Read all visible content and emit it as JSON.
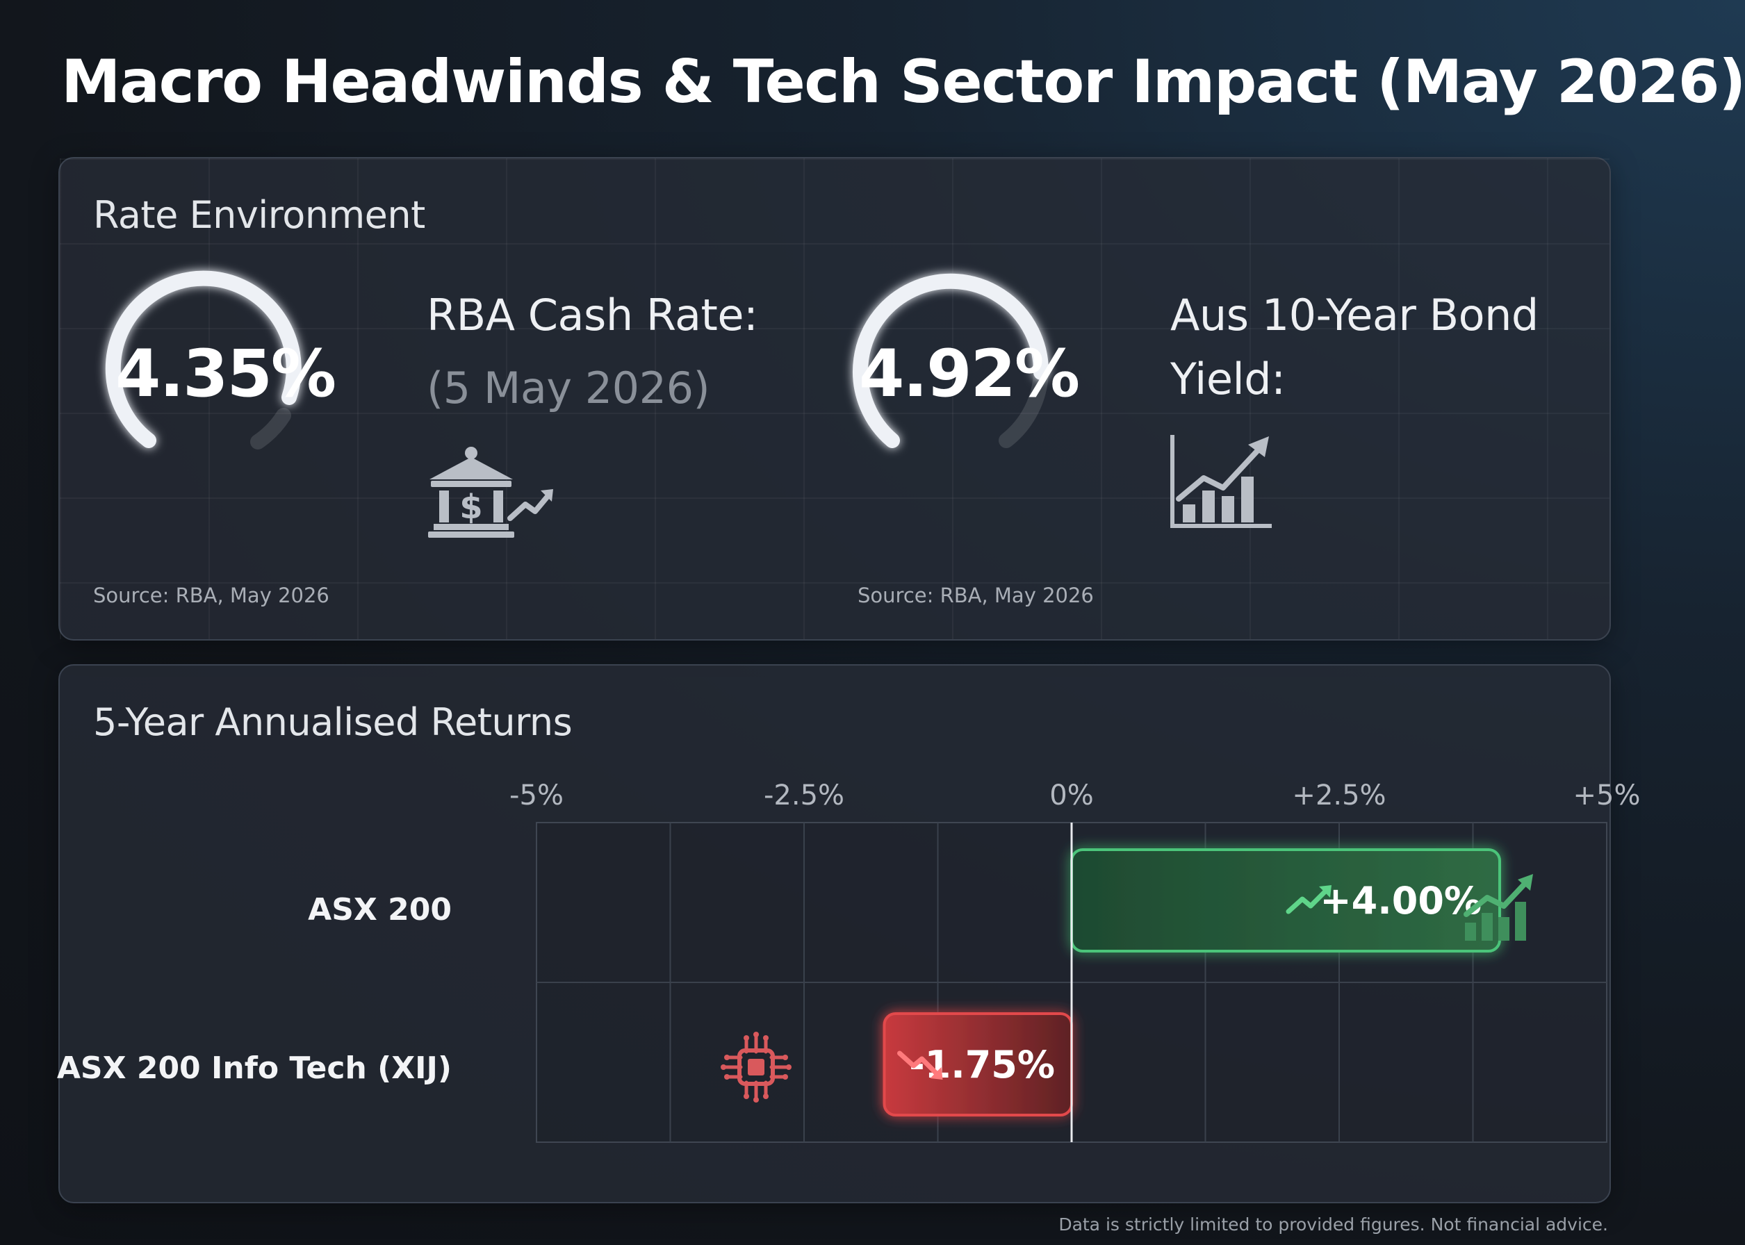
{
  "title": "Macro Headwinds & Tech Sector Impact (May 2026)",
  "rate_panel": {
    "title": "Rate Environment",
    "rba": {
      "value": "4.35%",
      "label": "RBA Cash Rate:",
      "date": "(5 May 2026)",
      "source": "Source: RBA, May 2026",
      "icon": "bank-dollar-icon"
    },
    "bond": {
      "value": "4.92%",
      "label_line1": "Aus 10-Year Bond",
      "label_line2": "Yield:",
      "source": "Source: RBA, May 2026",
      "icon": "rising-bar-chart-icon"
    }
  },
  "returns_panel": {
    "title": "5-Year Annualised Returns"
  },
  "chart_data": {
    "type": "bar",
    "orientation": "horizontal",
    "title": "5-Year Annualised Returns",
    "categories": [
      "ASX 200",
      "ASX 200 Info Tech (XIJ)"
    ],
    "values": [
      4.0,
      -1.75
    ],
    "value_labels": [
      "+4.00%",
      "-1.75%"
    ],
    "x_ticks": [
      -5,
      -2.5,
      0,
      2.5,
      5
    ],
    "x_tick_labels": [
      "-5%",
      "-2.5%",
      "0%",
      "+2.5%",
      "+5%"
    ],
    "xlim": [
      -5,
      5
    ],
    "grid": true,
    "colors": {
      "positive": "#4cc47a",
      "negative": "#e2494c"
    }
  },
  "footer": "Data is strictly limited to provided figures. Not financial advice."
}
